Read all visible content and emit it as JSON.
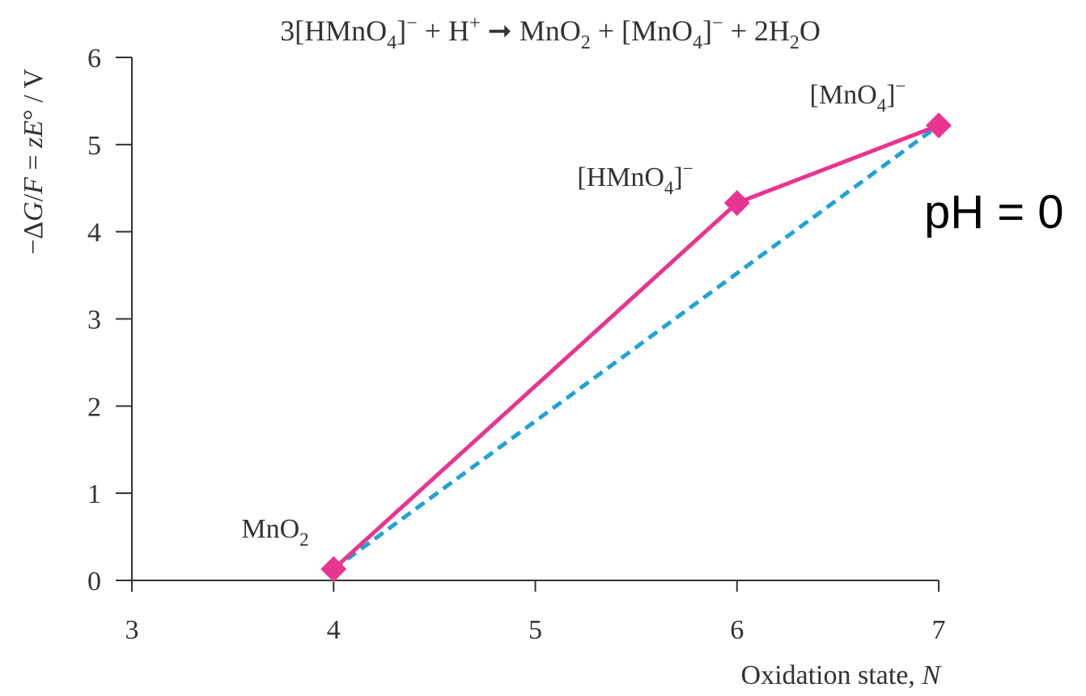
{
  "chart_data": {
    "type": "line",
    "title": "3[HMnO4]⁻ + H⁺ ➞ MnO2 + [MnO4]⁻ + 2H2O",
    "xlabel": "Oxidation state, N",
    "ylabel": "−ΔG/F = zE° / V",
    "xlim": [
      3,
      7
    ],
    "ylim": [
      0,
      6
    ],
    "x_ticks": [
      3,
      4,
      5,
      6,
      7
    ],
    "y_ticks": [
      0,
      1,
      2,
      3,
      4,
      5,
      6
    ],
    "grid": false,
    "series": [
      {
        "name": "",
        "style": "solid",
        "color": "#e8358f",
        "marker": "diamond",
        "points": [
          {
            "x": 4,
            "y": 0.13,
            "label": "MnO2"
          },
          {
            "x": 6,
            "y": 4.33,
            "label": "[HMnO4]⁻"
          },
          {
            "x": 7,
            "y": 5.22,
            "label": "[MnO4]⁻"
          }
        ]
      },
      {
        "name": "",
        "style": "dashed",
        "color": "#1fa3d6",
        "points": [
          {
            "x": 4,
            "y": 0.13
          },
          {
            "x": 7,
            "y": 5.22
          }
        ]
      }
    ],
    "annotation": "pH = 0"
  }
}
